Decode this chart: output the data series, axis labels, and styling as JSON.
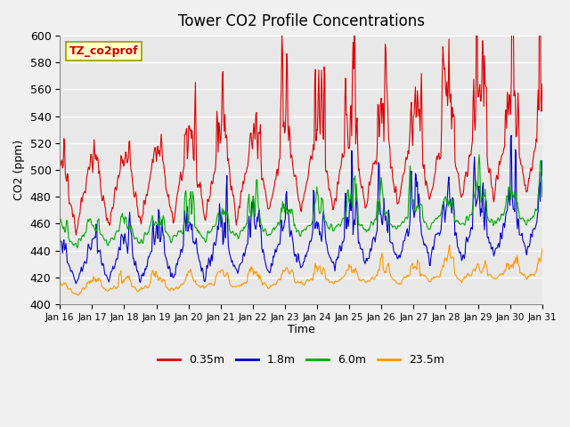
{
  "title": "Tower CO2 Profile Concentrations",
  "xlabel": "Time",
  "ylabel": "CO2 (ppm)",
  "ylim": [
    400,
    600
  ],
  "yticks": [
    400,
    420,
    440,
    460,
    480,
    500,
    520,
    540,
    560,
    580,
    600
  ],
  "bg_color": "#e8e8e8",
  "plot_bg_color": "#e8e8e8",
  "legend_label": "TZ_co2prof",
  "series_labels": [
    "0.35m",
    "1.8m",
    "6.0m",
    "23.5m"
  ],
  "series_colors": [
    "#dd0000",
    "#0000cc",
    "#00aa00",
    "#ff9900"
  ],
  "xtick_labels": [
    "Jan 16",
    "Jan 17",
    "Jan 18",
    "Jan 19",
    "Jan 20",
    "Jan 21",
    "Jan 22",
    "Jan 23",
    "Jan 24",
    "Jan 25",
    "Jan 26",
    "Jan 27",
    "Jan 28",
    "Jan 29",
    "Jan 30",
    "Jan 31"
  ],
  "n_days": 15,
  "seed": 42
}
